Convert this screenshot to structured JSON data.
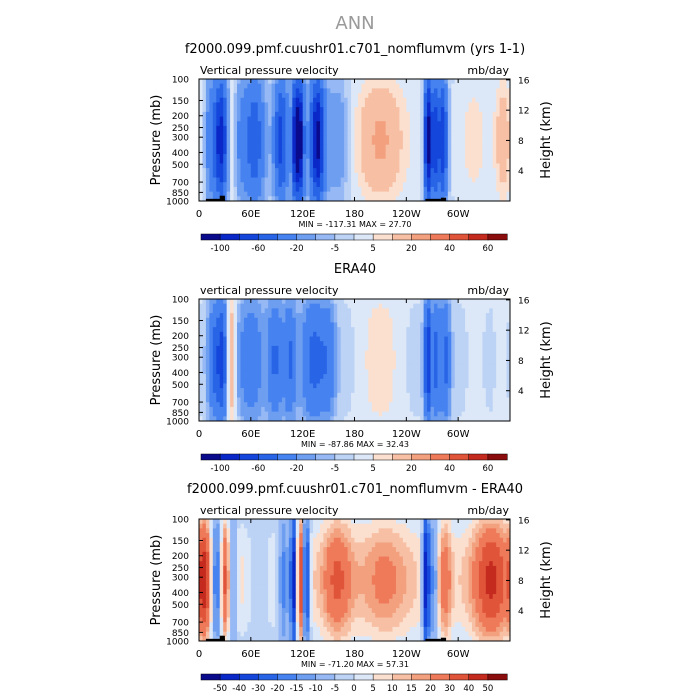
{
  "page_title": "ANN",
  "chart_data": [
    {
      "type": "heatmap",
      "title": "f2000.099.pmf.cuushr01.c701_nomflumvm (yrs 1-1)",
      "left_label": "Vertical pressure velocity",
      "right_label": "mb/day",
      "ylabel": "Pressure (mb)",
      "y2label": "Height (km)",
      "stats": "MIN = -117.31   MAX =  27.70",
      "x_ticks": [
        "0",
        "60E",
        "120E",
        "180",
        "120W",
        "60W"
      ],
      "x_tick_lons": [
        0,
        60,
        120,
        180,
        240,
        300
      ],
      "xlim": [
        0,
        360
      ],
      "y_ticks": [
        "100",
        "150",
        "200",
        "250",
        "300",
        "400",
        "500",
        "700",
        "850",
        "1000"
      ],
      "y_tick_p": [
        100,
        150,
        200,
        250,
        300,
        400,
        500,
        700,
        850,
        1000
      ],
      "ylim": [
        1000,
        100
      ],
      "y_scale": "log",
      "y2_ticks": [
        "4",
        "8",
        "12",
        "16"
      ],
      "y2_tick_km": [
        4,
        8,
        12,
        16
      ],
      "levels": [
        -100,
        -80,
        -60,
        -40,
        -20,
        -10,
        -5,
        0,
        5,
        10,
        20,
        30,
        40,
        60
      ],
      "colorbar_labels": [
        "-100",
        "-60",
        "-20",
        "-5",
        "5",
        "20",
        "40",
        "60"
      ],
      "colorbar_label_index": [
        1,
        3,
        5,
        7,
        9,
        11,
        13,
        15
      ],
      "features": [
        {
          "lon": 12,
          "width": 4,
          "amp": -25
        },
        {
          "lon": 25,
          "width": 6,
          "amp": -95
        },
        {
          "lon": 37,
          "width": 4,
          "amp": 20
        },
        {
          "lon": 48,
          "width": 8,
          "amp": -22
        },
        {
          "lon": 65,
          "width": 8,
          "amp": -55
        },
        {
          "lon": 95,
          "width": 6,
          "amp": -70
        },
        {
          "lon": 112,
          "width": 3,
          "amp": -110
        },
        {
          "lon": 118,
          "width": 3,
          "amp": -95
        },
        {
          "lon": 137,
          "width": 6,
          "amp": -110
        },
        {
          "lon": 160,
          "width": 9,
          "amp": -20
        },
        {
          "lon": 210,
          "width": 18,
          "amp": 20
        },
        {
          "lon": 265,
          "width": 3,
          "amp": -115
        },
        {
          "lon": 273,
          "width": 3,
          "amp": -70
        },
        {
          "lon": 282,
          "width": 4,
          "amp": -80
        },
        {
          "lon": 318,
          "width": 10,
          "amp": 6
        },
        {
          "lon": 352,
          "width": 6,
          "amp": 15
        }
      ],
      "background": 2,
      "topography": true
    },
    {
      "type": "heatmap",
      "title": "ERA40",
      "left_label": "vertical pressure velocity",
      "right_label": "mb/day",
      "ylabel": "Pressure (mb)",
      "y2label": "Height (km)",
      "stats": "MIN = -87.86   MAX =  32.43",
      "x_ticks": [
        "0",
        "60E",
        "120E",
        "180",
        "120W",
        "60W"
      ],
      "x_tick_lons": [
        0,
        60,
        120,
        180,
        240,
        300
      ],
      "xlim": [
        0,
        360
      ],
      "y_ticks": [
        "100",
        "150",
        "200",
        "250",
        "300",
        "400",
        "500",
        "700",
        "850",
        "1000"
      ],
      "y_tick_p": [
        100,
        150,
        200,
        250,
        300,
        400,
        500,
        700,
        850,
        1000
      ],
      "ylim": [
        1000,
        100
      ],
      "y_scale": "log",
      "y2_ticks": [
        "4",
        "8",
        "12",
        "16"
      ],
      "y2_tick_km": [
        4,
        8,
        12,
        16
      ],
      "levels": [
        -100,
        -80,
        -60,
        -40,
        -20,
        -10,
        -5,
        0,
        5,
        10,
        20,
        30,
        40,
        60
      ],
      "colorbar_labels": [
        "-100",
        "-60",
        "-20",
        "-5",
        "5",
        "20",
        "40",
        "60"
      ],
      "colorbar_label_index": [
        1,
        3,
        5,
        7,
        9,
        11,
        13,
        15
      ],
      "features": [
        {
          "lon": 18,
          "width": 5,
          "amp": -45
        },
        {
          "lon": 27,
          "width": 4,
          "amp": -60
        },
        {
          "lon": 37,
          "width": 4,
          "amp": 25
        },
        {
          "lon": 60,
          "width": 10,
          "amp": -35
        },
        {
          "lon": 88,
          "width": 6,
          "amp": -40
        },
        {
          "lon": 105,
          "width": 5,
          "amp": -40
        },
        {
          "lon": 133,
          "width": 10,
          "amp": -45
        },
        {
          "lon": 150,
          "width": 6,
          "amp": -25
        },
        {
          "lon": 210,
          "width": 18,
          "amp": 12
        },
        {
          "lon": 265,
          "width": 3,
          "amp": -80
        },
        {
          "lon": 275,
          "width": 3,
          "amp": -45
        },
        {
          "lon": 285,
          "width": 4,
          "amp": -45
        },
        {
          "lon": 320,
          "width": 9,
          "amp": 5
        },
        {
          "lon": 350,
          "width": 6,
          "amp": 6
        }
      ],
      "background": -3,
      "topography": false
    },
    {
      "type": "heatmap",
      "title": "f2000.099.pmf.cuushr01.c701_nomflumvm - ERA40",
      "left_label": "vertical pressure velocity",
      "right_label": "mb/day",
      "ylabel": "Pressure (mb)",
      "y2label": "Height (km)",
      "stats": "MIN = -71.20   MAX =  57.31",
      "x_ticks": [
        "0",
        "60E",
        "120E",
        "180",
        "120W",
        "60W"
      ],
      "x_tick_lons": [
        0,
        60,
        120,
        180,
        240,
        300
      ],
      "xlim": [
        0,
        360
      ],
      "y_ticks": [
        "100",
        "150",
        "200",
        "250",
        "300",
        "400",
        "500",
        "700",
        "850",
        "1000"
      ],
      "y_tick_p": [
        100,
        150,
        200,
        250,
        300,
        400,
        500,
        700,
        850,
        1000
      ],
      "ylim": [
        1000,
        100
      ],
      "y_scale": "log",
      "y2_ticks": [
        "4",
        "8",
        "12",
        "16"
      ],
      "y2_tick_km": [
        4,
        8,
        12,
        16
      ],
      "levels": [
        -50,
        -40,
        -30,
        -20,
        -15,
        -10,
        -5,
        0,
        5,
        10,
        15,
        20,
        30,
        40,
        50
      ],
      "colorbar_labels": [
        "-50",
        "-40",
        "-30",
        "-20",
        "-15",
        "-10",
        "-5",
        "0",
        "5",
        "10",
        "15",
        "20",
        "30",
        "40",
        "50"
      ],
      "colorbar_label_index": [
        1,
        2,
        3,
        4,
        5,
        6,
        7,
        8,
        9,
        10,
        11,
        12,
        13,
        14,
        15
      ],
      "features": [
        {
          "lon": 6,
          "width": 5,
          "amp": 35
        },
        {
          "lon": 20,
          "width": 4,
          "amp": -30
        },
        {
          "lon": 30,
          "width": 3,
          "amp": 25
        },
        {
          "lon": 40,
          "width": 3,
          "amp": -20
        },
        {
          "lon": 70,
          "width": 10,
          "amp": -12
        },
        {
          "lon": 98,
          "width": 5,
          "amp": -25
        },
        {
          "lon": 110,
          "width": 3,
          "amp": -55
        },
        {
          "lon": 117,
          "width": 3,
          "amp": 40
        },
        {
          "lon": 124,
          "width": 3,
          "amp": -45
        },
        {
          "lon": 160,
          "width": 12,
          "amp": 25
        },
        {
          "lon": 215,
          "width": 20,
          "amp": 15
        },
        {
          "lon": 263,
          "width": 3,
          "amp": -60
        },
        {
          "lon": 272,
          "width": 3,
          "amp": -25
        },
        {
          "lon": 285,
          "width": 5,
          "amp": 20
        },
        {
          "lon": 338,
          "width": 15,
          "amp": 35
        }
      ],
      "background": 8,
      "topography": true
    }
  ],
  "palettes": {
    "full_wind": [
      "#0a0a8c",
      "#0a28c8",
      "#1446dc",
      "#2864e6",
      "#4682f0",
      "#6e9ef0",
      "#96b9f5",
      "#bcd3f5",
      "#dce8f8",
      "#fbe0d0",
      "#f7c0a4",
      "#f3a07e",
      "#ee7a5a",
      "#e0543a",
      "#c42a1e",
      "#8a0c0c"
    ],
    "diff": [
      "#0a0a8c",
      "#0a28c8",
      "#1446dc",
      "#2864e6",
      "#4682f0",
      "#6e9ef0",
      "#96b9f5",
      "#bcd3f5",
      "#dce8f8",
      "#fbe0d0",
      "#f7c0a4",
      "#f3a07e",
      "#ee7a5a",
      "#e0543a",
      "#c42a1e",
      "#8a0c0c"
    ]
  }
}
